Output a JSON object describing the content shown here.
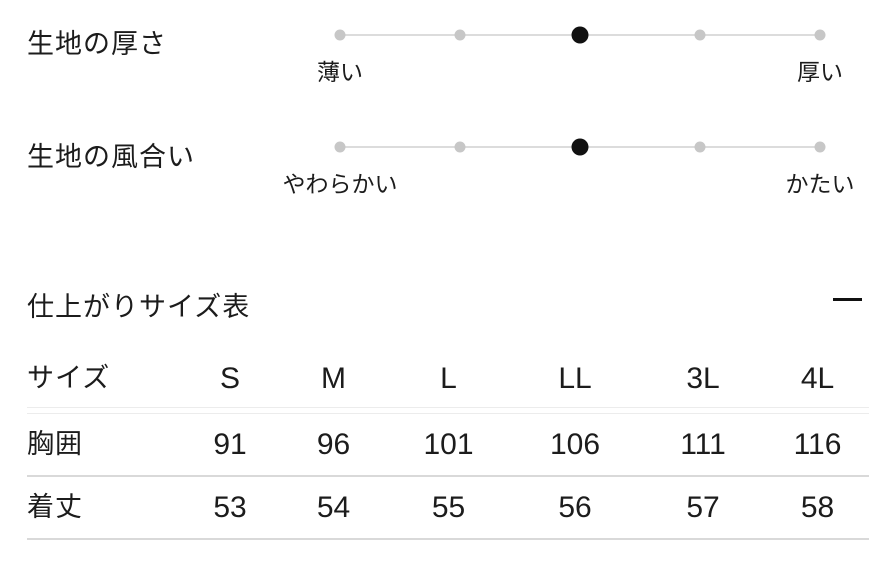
{
  "fabric_scales": [
    {
      "label": "生地の厚さ",
      "min_label": "薄い",
      "max_label": "厚い",
      "steps": 5,
      "active_step": 3
    },
    {
      "label": "生地の風合い",
      "min_label": "やわらかい",
      "max_label": "かたい",
      "steps": 5,
      "active_step": 3
    }
  ],
  "size_section": {
    "title": "仕上がりサイズ表",
    "toggle_icon": "minus-icon",
    "table": {
      "header": [
        "サイズ",
        "S",
        "M",
        "L",
        "LL",
        "3L",
        "4L"
      ],
      "rows": [
        {
          "label": "胸囲",
          "values": [
            91,
            96,
            101,
            106,
            111,
            116
          ]
        },
        {
          "label": "着丈",
          "values": [
            53,
            54,
            55,
            56,
            57,
            58
          ]
        }
      ]
    }
  },
  "colors": {
    "text": "#1c1c1c",
    "dot_inactive": "#c7c7c7",
    "dot_active": "#111111",
    "track_line": "#dcdcdc",
    "header_divider": "#ececec",
    "row_divider": "#d9d9d9",
    "icon": "#111111",
    "background": "#ffffff"
  }
}
